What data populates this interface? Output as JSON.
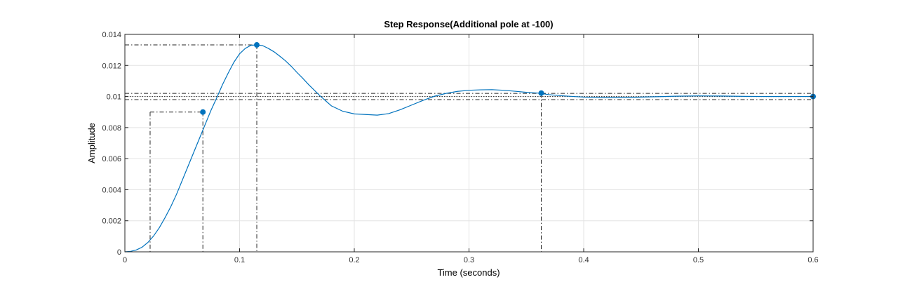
{
  "chart_data": {
    "type": "line",
    "title": "Step Response(Additional pole at -100)",
    "xlabel": "Time (seconds)",
    "ylabel": "Amplitude",
    "xlim": [
      0,
      0.6
    ],
    "ylim": [
      0,
      0.014
    ],
    "xticks": [
      0,
      0.1,
      0.2,
      0.3,
      0.4,
      0.5,
      0.6
    ],
    "xtick_labels": [
      "0",
      "0.1",
      "0.2",
      "0.3",
      "0.4",
      "0.5",
      "0.6"
    ],
    "yticks": [
      0,
      0.002,
      0.004,
      0.006,
      0.008,
      0.01,
      0.012,
      0.014
    ],
    "ytick_labels": [
      "0",
      "0.002",
      "0.004",
      "0.006",
      "0.008",
      "0.01",
      "0.012",
      "0.014"
    ],
    "grid": true,
    "line_color": "#0072BD",
    "series": [
      {
        "x": [
          0,
          0.005,
          0.01,
          0.015,
          0.02,
          0.025,
          0.03,
          0.035,
          0.04,
          0.045,
          0.05,
          0.055,
          0.06,
          0.065,
          0.07,
          0.075,
          0.08,
          0.085,
          0.09,
          0.095,
          0.1,
          0.105,
          0.11,
          0.115,
          0.12,
          0.125,
          0.13,
          0.135,
          0.14,
          0.145,
          0.15,
          0.155,
          0.16,
          0.17,
          0.18,
          0.19,
          0.2,
          0.21,
          0.22,
          0.23,
          0.24,
          0.25,
          0.26,
          0.27,
          0.28,
          0.29,
          0.3,
          0.31,
          0.32,
          0.33,
          0.34,
          0.35,
          0.36,
          0.37,
          0.38,
          0.4,
          0.42,
          0.44,
          0.46,
          0.48,
          0.5,
          0.52,
          0.54,
          0.56,
          0.58,
          0.6
        ],
        "values": [
          0,
          3e-05,
          0.00012,
          0.0003,
          0.0006,
          0.00102,
          0.00155,
          0.0022,
          0.0029,
          0.0037,
          0.0046,
          0.0055,
          0.0064,
          0.0073,
          0.0082,
          0.0091,
          0.0099,
          0.01075,
          0.0115,
          0.0122,
          0.01275,
          0.0131,
          0.0133,
          0.01332,
          0.01328,
          0.0131,
          0.01288,
          0.0126,
          0.0123,
          0.01195,
          0.01155,
          0.01118,
          0.01078,
          0.01005,
          0.0094,
          0.00905,
          0.00888,
          0.00884,
          0.0088,
          0.0089,
          0.00915,
          0.00945,
          0.00975,
          0.01002,
          0.0102,
          0.01033,
          0.0104,
          0.01043,
          0.01044,
          0.0104,
          0.01034,
          0.01027,
          0.01022,
          0.01012,
          0.01005,
          0.00996,
          0.00992,
          0.00994,
          0.00998,
          0.01002,
          0.01004,
          0.01003,
          0.01001,
          0.01,
          0.01,
          0.01
        ]
      }
    ],
    "markers": [
      {
        "x": 0.068,
        "y": 0.009,
        "guide": "rise-time"
      },
      {
        "x": 0.115,
        "y": 0.01332,
        "guide": "peak"
      },
      {
        "x": 0.363,
        "y": 0.01022,
        "guide": "settling-time"
      },
      {
        "x": 0.6,
        "y": 0.01,
        "guide": "steady-state"
      }
    ],
    "reference_lines": {
      "rise_start": {
        "x": 0.022,
        "y": 0.001
      },
      "rise_end": {
        "x": 0.068,
        "y": 0.009
      },
      "peak": {
        "x": 0.115,
        "y": 0.01332
      },
      "settling_band": [
        0.0098,
        0.0102
      ],
      "settling_time": 0.363,
      "steady_state": 0.01
    }
  }
}
